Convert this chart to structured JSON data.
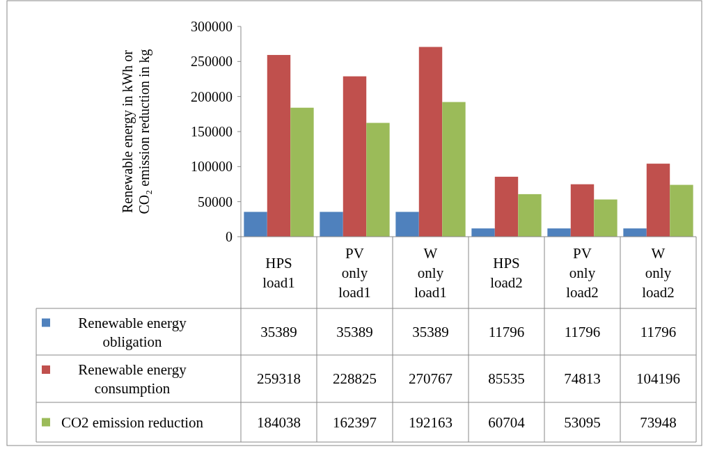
{
  "chart_data": {
    "type": "bar",
    "ylabel": "Renewable energy  in  kWh or CO₂ emission reduction in kg",
    "categories": [
      "HPS load1",
      "PV only load1",
      "W only load1",
      "HPS load2",
      "PV only load2",
      "W only load2"
    ],
    "series": [
      {
        "name": "Renewable energy obligation",
        "color": "#4f81bd",
        "values": [
          35389,
          35389,
          35389,
          11796,
          11796,
          11796
        ]
      },
      {
        "name": "Renewable energy consumption",
        "color": "#c0504d",
        "values": [
          259318,
          228825,
          270767,
          85535,
          74813,
          104196
        ]
      },
      {
        "name": "CO2 emission reduction",
        "color": "#9bbb59",
        "values": [
          184038,
          162397,
          192163,
          60704,
          53095,
          73948
        ]
      }
    ],
    "ylim": [
      0,
      300000
    ],
    "yticks": [
      0,
      50000,
      100000,
      150000,
      200000,
      250000,
      300000
    ],
    "grid": false,
    "legend": "bottom",
    "data_labels": true
  }
}
